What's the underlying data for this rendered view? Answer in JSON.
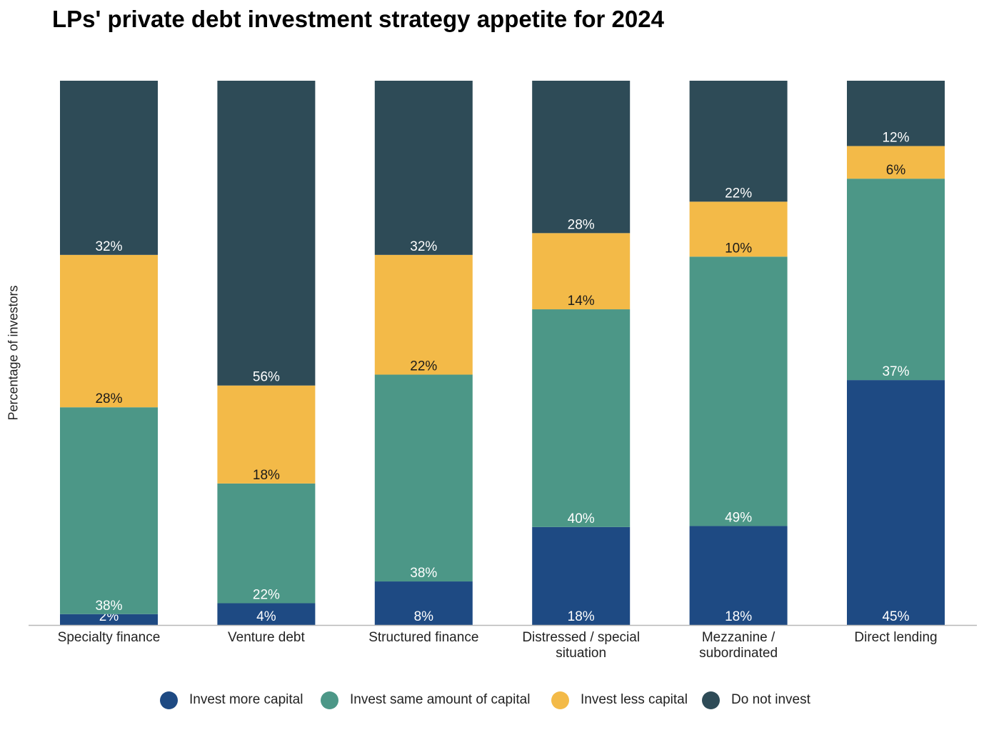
{
  "title": "LPs' private debt investment strategy appetite for 2024",
  "chart_data": {
    "type": "bar",
    "stacked": true,
    "percent_stacked": true,
    "title": "LPs' private debt investment strategy appetite for 2024",
    "ylabel": "Percentage of investors",
    "xlabel": "",
    "ylim": [
      0,
      100
    ],
    "grid": false,
    "legend_position": "bottom",
    "categories": [
      "Specialty finance",
      "Venture debt",
      "Structured finance",
      "Distressed / special situation",
      "Mezzanine / subordinated",
      "Direct lending"
    ],
    "category_lines": [
      [
        "Specialty finance"
      ],
      [
        "Venture debt"
      ],
      [
        "Structured finance"
      ],
      [
        "Distressed / special",
        "situation"
      ],
      [
        "Mezzanine /",
        "subordinated"
      ],
      [
        "Direct lending"
      ]
    ],
    "series": [
      {
        "name": "Invest more capital",
        "color": "#1e4a83",
        "label_color": "#ffffff",
        "values": [
          2,
          4,
          8,
          18,
          18,
          45
        ]
      },
      {
        "name": "Invest same amount of capital",
        "color": "#4c9787",
        "label_color": "#ffffff",
        "values": [
          38,
          22,
          38,
          40,
          49,
          37
        ]
      },
      {
        "name": "Invest less capital",
        "color": "#f3ba48",
        "label_color": "#1a1a1a",
        "values": [
          28,
          18,
          22,
          14,
          10,
          6
        ]
      },
      {
        "name": "Do not invest",
        "color": "#2e4b57",
        "label_color": "#ffffff",
        "values": [
          32,
          56,
          32,
          28,
          22,
          12
        ]
      }
    ],
    "data_labels": [
      [
        "2%",
        "4%",
        "8%",
        "18%",
        "18%",
        "45%"
      ],
      [
        "38%",
        "22%",
        "38%",
        "40%",
        "49%",
        "37%"
      ],
      [
        "28%",
        "18%",
        "22%",
        "14%",
        "10%",
        "6%"
      ],
      [
        "32%",
        "56%",
        "32%",
        "28%",
        "22%",
        "12%"
      ]
    ]
  }
}
